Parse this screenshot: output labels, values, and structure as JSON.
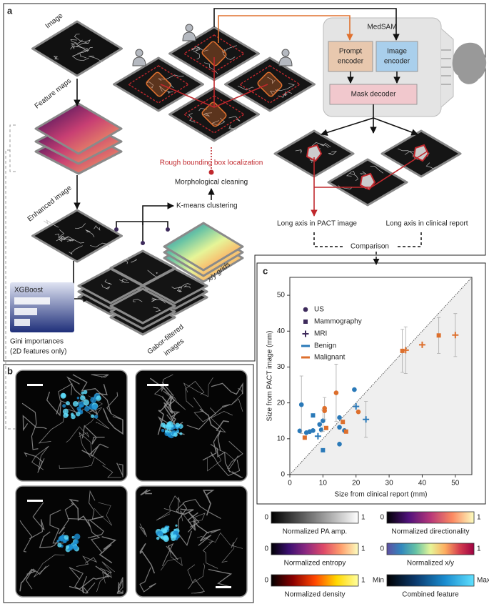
{
  "panel_a": {
    "label": "a",
    "image": "Image",
    "feature_maps": "Feature maps",
    "enhanced_image": "Enhanced image",
    "xgboost": "XGBoost",
    "gini": "Gini importances",
    "gini_note": "(2D features only)",
    "gabor": "Gabor-filtered",
    "gabor_2": "images",
    "grids": "x/y grids",
    "kmeans": "K-means clustering",
    "morph": "Morphological cleaning",
    "rough": "Rough bounding box localization",
    "medsam": "MedSAM",
    "prompt_encoder": [
      "Prompt",
      "encoder"
    ],
    "image_encoder": [
      "Image",
      "encoder"
    ],
    "mask_decoder": "Mask decoder",
    "long_axis_pact": "Long axis in PACT image",
    "long_axis_report": "Long axis in clinical report",
    "comparison": "Comparison"
  },
  "panel_b": {
    "label": "b"
  },
  "chart_data": {
    "type": "scatter",
    "label": "c",
    "x_label": "Size from clinical report (mm)",
    "y_label": "Size from PACT image (mm)",
    "xlim": [
      0,
      55
    ],
    "ylim": [
      0,
      55
    ],
    "xticks": [
      0,
      10,
      20,
      30,
      40,
      50
    ],
    "yticks": [
      0,
      10,
      20,
      30,
      40,
      50
    ],
    "legend_markers": [
      {
        "name": "US",
        "marker": "circle"
      },
      {
        "name": "Mammography",
        "marker": "square"
      },
      {
        "name": "MRI",
        "marker": "plus"
      }
    ],
    "legend_colors": [
      {
        "name": "Benign",
        "color": "#2a79b8"
      },
      {
        "name": "Malignant",
        "color": "#dd6f2c"
      }
    ],
    "series": [
      {
        "marker": "circle",
        "color": "#2a79b8",
        "x": [
          3,
          3.5,
          5,
          6,
          7,
          9,
          9.5,
          10,
          15,
          15,
          15,
          16.5,
          19.5
        ],
        "y": [
          12.2,
          19.5,
          11.7,
          12,
          12.3,
          14,
          12.5,
          15,
          13.2,
          8.5,
          15.9,
          12.3,
          23.7
        ],
        "yerr": [
          null,
          8,
          null,
          null,
          null,
          null,
          null,
          3,
          null,
          null,
          null,
          null,
          null
        ]
      },
      {
        "marker": "circle",
        "color": "#dd6f2c",
        "x": [
          10.5,
          10.5,
          14,
          20.7
        ],
        "y": [
          18.5,
          17.8,
          22.8,
          17.5
        ],
        "yerr": [
          3,
          null,
          8,
          null
        ]
      },
      {
        "marker": "square",
        "color": "#2a79b8",
        "x": [
          7,
          10
        ],
        "y": [
          16.5,
          6.8
        ],
        "yerr": [
          null,
          null
        ]
      },
      {
        "marker": "square",
        "color": "#dd6f2c",
        "x": [
          4.5,
          11,
          16,
          17,
          34,
          45
        ],
        "y": [
          10.3,
          13,
          14.7,
          12,
          34.5,
          38.8
        ],
        "yerr": [
          null,
          null,
          null,
          null,
          6,
          5
        ]
      },
      {
        "marker": "plus",
        "color": "#2a79b8",
        "x": [
          8.5,
          20,
          23
        ],
        "y": [
          10.7,
          19,
          15.4
        ],
        "yerr": [
          null,
          null,
          5
        ]
      },
      {
        "marker": "plus",
        "color": "#dd6f2c",
        "x": [
          35,
          40,
          50
        ],
        "y": [
          34.7,
          36.2,
          38.9
        ],
        "yerr": [
          6.5,
          null,
          6
        ]
      }
    ]
  },
  "colorbars": [
    {
      "min": 0,
      "max": 1,
      "label": "Normalized PA amp.",
      "colors": [
        "#000000",
        "#ffffff"
      ]
    },
    {
      "min": 0,
      "max": 1,
      "label": "Normalized directionality",
      "colors": [
        "#000004",
        "#51127c",
        "#b73779",
        "#fc8961",
        "#fcfdbf"
      ]
    },
    {
      "min": 0,
      "max": 1,
      "label": "Normalized entropy",
      "colors": [
        "#000004",
        "#3b0f70",
        "#8c2981",
        "#de4968",
        "#fe9f6d",
        "#fcfdbf"
      ]
    },
    {
      "min": 0,
      "max": 1,
      "label": "Normalized x/y",
      "colors": [
        "#5e4fa2",
        "#3288bd",
        "#66c2a5",
        "#e6f598",
        "#fdae61",
        "#d53e4f",
        "#9e0142"
      ]
    },
    {
      "min": 0,
      "max": 1,
      "label": "Normalized density",
      "colors": [
        "#000000",
        "#8b0000",
        "#ff4500",
        "#ffd700",
        "#ffffa0"
      ]
    },
    {
      "min": "Min",
      "max": "Max",
      "label": "Combined feature",
      "colors": [
        "#000000",
        "#0b3a6e",
        "#1a8ccf",
        "#5fe0ff"
      ]
    }
  ]
}
